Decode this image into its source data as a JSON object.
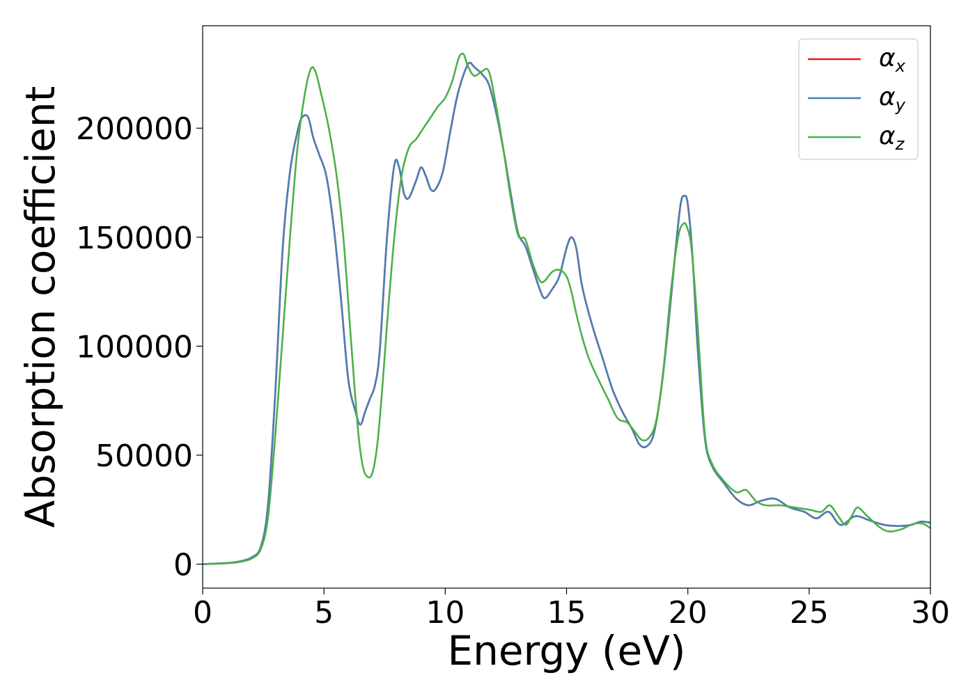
{
  "chart_data": {
    "type": "line",
    "xlabel": "Energy (eV)",
    "ylabel": "Absorption coefficient",
    "xlim": [
      0,
      30
    ],
    "ylim": [
      -11000,
      247000
    ],
    "xticks": [
      0,
      5,
      10,
      15,
      20,
      25,
      30
    ],
    "xtick_labels": [
      "0",
      "5",
      "10",
      "15",
      "20",
      "25",
      "30"
    ],
    "yticks": [
      0,
      50000,
      100000,
      150000,
      200000
    ],
    "ytick_labels": [
      "0",
      "50000",
      "100000",
      "150000",
      "200000"
    ],
    "grid": false,
    "legend_position": "top-right",
    "series": [
      {
        "name": "α_x",
        "legend_main": "α",
        "legend_sub": "x",
        "color": "#e41a1c",
        "x": [
          0,
          1,
          1.5,
          2,
          2.4,
          2.7,
          3.0,
          3.3,
          3.6,
          3.9,
          4.1,
          4.35,
          4.55,
          4.8,
          5.1,
          5.4,
          5.7,
          6.0,
          6.3,
          6.5,
          6.7,
          6.9,
          7.1,
          7.3,
          7.6,
          7.9,
          8.1,
          8.3,
          8.5,
          8.8,
          9.0,
          9.2,
          9.4,
          9.6,
          9.9,
          10.2,
          10.5,
          10.8,
          11.0,
          11.2,
          11.5,
          11.8,
          12.1,
          12.4,
          12.7,
          13.0,
          13.3,
          13.6,
          13.9,
          14.1,
          14.4,
          14.7,
          15.0,
          15.2,
          15.4,
          15.6,
          15.8,
          16.1,
          16.5,
          16.9,
          17.3,
          17.7,
          18.0,
          18.3,
          18.6,
          18.9,
          19.2,
          19.5,
          19.7,
          19.85,
          20.0,
          20.2,
          20.4,
          20.7,
          21.0,
          21.5,
          22.0,
          22.5,
          23.0,
          23.6,
          24.2,
          24.8,
          25.3,
          25.8,
          26.3,
          26.9,
          27.5,
          28.1,
          28.7,
          29.2,
          29.6,
          30.0
        ],
        "y": [
          0,
          500,
          1200,
          3000,
          8000,
          28000,
          80000,
          145000,
          180000,
          198000,
          205000,
          205000,
          196000,
          188000,
          178000,
          155000,
          122000,
          85000,
          70000,
          64000,
          70000,
          76000,
          82000,
          98000,
          150000,
          183000,
          182000,
          170000,
          168000,
          176000,
          182000,
          178000,
          172000,
          172000,
          180000,
          198000,
          215000,
          226000,
          230000,
          228000,
          225000,
          220000,
          207000,
          190000,
          170000,
          152000,
          146000,
          136000,
          126000,
          122000,
          126000,
          132000,
          145000,
          150000,
          145000,
          130000,
          120000,
          108000,
          94000,
          80000,
          70000,
          62000,
          55000,
          54000,
          60000,
          80000,
          110000,
          145000,
          165000,
          169000,
          165000,
          140000,
          100000,
          58000,
          45000,
          37000,
          30000,
          27000,
          29000,
          30000,
          26000,
          24000,
          21000,
          24000,
          18000,
          22000,
          20000,
          18000,
          17500,
          18000,
          19500,
          19000
        ]
      },
      {
        "name": "α_y",
        "legend_main": "α",
        "legend_sub": "y",
        "color": "#4a7fb5",
        "x": [
          0,
          1,
          1.5,
          2,
          2.4,
          2.7,
          3.0,
          3.3,
          3.6,
          3.9,
          4.1,
          4.35,
          4.55,
          4.8,
          5.1,
          5.4,
          5.7,
          6.0,
          6.3,
          6.5,
          6.7,
          6.9,
          7.1,
          7.3,
          7.6,
          7.9,
          8.1,
          8.3,
          8.5,
          8.8,
          9.0,
          9.2,
          9.4,
          9.6,
          9.9,
          10.2,
          10.5,
          10.8,
          11.0,
          11.2,
          11.5,
          11.8,
          12.1,
          12.4,
          12.7,
          13.0,
          13.3,
          13.6,
          13.9,
          14.1,
          14.4,
          14.7,
          15.0,
          15.2,
          15.4,
          15.6,
          15.8,
          16.1,
          16.5,
          16.9,
          17.3,
          17.7,
          18.0,
          18.3,
          18.6,
          18.9,
          19.2,
          19.5,
          19.7,
          19.85,
          20.0,
          20.2,
          20.4,
          20.7,
          21.0,
          21.5,
          22.0,
          22.5,
          23.0,
          23.6,
          24.2,
          24.8,
          25.3,
          25.8,
          26.3,
          26.9,
          27.5,
          28.1,
          28.7,
          29.2,
          29.6,
          30.0
        ],
        "y": [
          0,
          500,
          1200,
          3000,
          8000,
          28000,
          80000,
          145000,
          180000,
          198000,
          205000,
          205000,
          196000,
          188000,
          178000,
          155000,
          122000,
          85000,
          70000,
          64000,
          70000,
          76000,
          82000,
          98000,
          150000,
          183000,
          182000,
          170000,
          168000,
          176000,
          182000,
          178000,
          172000,
          172000,
          180000,
          198000,
          215000,
          226000,
          230000,
          228000,
          225000,
          220000,
          207000,
          190000,
          170000,
          152000,
          146000,
          136000,
          126000,
          122000,
          126000,
          132000,
          145000,
          150000,
          145000,
          130000,
          120000,
          108000,
          94000,
          80000,
          70000,
          62000,
          55000,
          54000,
          60000,
          80000,
          110000,
          145000,
          165000,
          169000,
          165000,
          140000,
          100000,
          58000,
          45000,
          37000,
          30000,
          27000,
          29000,
          30000,
          26000,
          24000,
          21000,
          24000,
          18000,
          22000,
          20000,
          18000,
          17500,
          18000,
          19500,
          19000
        ]
      },
      {
        "name": "α_z",
        "legend_main": "α",
        "legend_sub": "z",
        "color": "#4daf4a",
        "x": [
          0,
          1,
          1.5,
          2,
          2.4,
          2.7,
          3.0,
          3.3,
          3.6,
          3.9,
          4.2,
          4.45,
          4.65,
          4.9,
          5.2,
          5.5,
          5.8,
          6.1,
          6.4,
          6.6,
          6.8,
          7.0,
          7.2,
          7.4,
          7.6,
          7.9,
          8.2,
          8.5,
          8.8,
          9.1,
          9.4,
          9.7,
          10.0,
          10.3,
          10.55,
          10.75,
          10.95,
          11.2,
          11.5,
          11.8,
          12.1,
          12.4,
          12.7,
          13.0,
          13.3,
          13.6,
          13.9,
          14.1,
          14.4,
          14.7,
          15.0,
          15.2,
          15.4,
          15.6,
          15.9,
          16.3,
          16.7,
          17.1,
          17.5,
          17.8,
          18.1,
          18.4,
          18.7,
          19.0,
          19.3,
          19.6,
          19.8,
          19.95,
          20.15,
          20.4,
          20.7,
          21.0,
          21.5,
          22.0,
          22.4,
          22.8,
          23.2,
          23.8,
          24.4,
          25.0,
          25.5,
          25.85,
          26.2,
          26.5,
          26.75,
          27.0,
          27.4,
          27.9,
          28.3,
          28.8,
          29.3,
          29.7,
          30.0
        ],
        "y": [
          0,
          400,
          1000,
          2500,
          7000,
          22000,
          60000,
          105000,
          150000,
          190000,
          215000,
          227000,
          226000,
          215000,
          200000,
          180000,
          150000,
          105000,
          62000,
          45000,
          40000,
          42000,
          55000,
          80000,
          110000,
          150000,
          178000,
          191000,
          195000,
          200000,
          205000,
          210000,
          214000,
          222000,
          232000,
          234000,
          228000,
          224000,
          226000,
          226000,
          210000,
          190000,
          168000,
          151000,
          149000,
          138000,
          130000,
          130000,
          134000,
          135000,
          132000,
          125000,
          115000,
          106000,
          95000,
          85000,
          76000,
          67000,
          65000,
          61000,
          57000,
          58000,
          66000,
          90000,
          125000,
          150000,
          156000,
          155000,
          145000,
          110000,
          60000,
          46000,
          38000,
          33000,
          34000,
          29000,
          27000,
          27000,
          26000,
          25000,
          24000,
          27000,
          22000,
          18000,
          22000,
          26000,
          22000,
          17000,
          15000,
          16000,
          18500,
          18500,
          16500
        ]
      }
    ]
  }
}
